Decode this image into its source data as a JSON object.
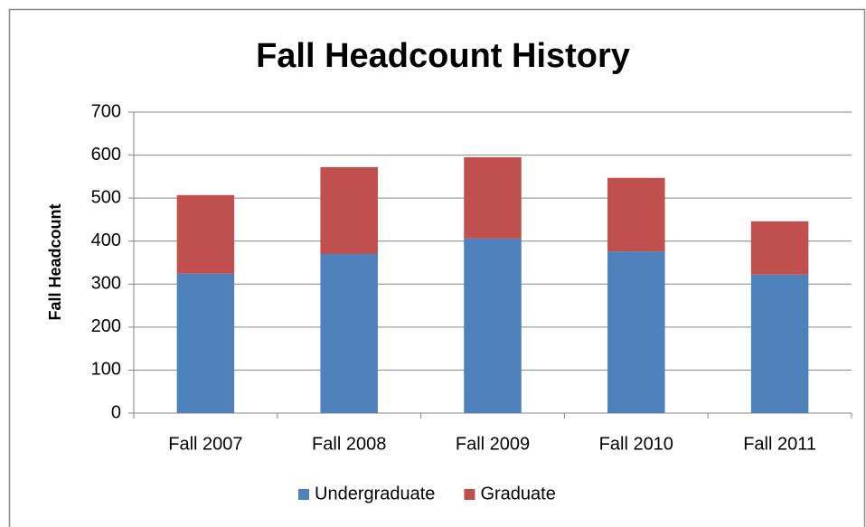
{
  "chart_data": {
    "type": "bar",
    "stacked": true,
    "title": "Fall Headcount History",
    "y_label": "Fall Headcount",
    "categories": [
      "Fall 2007",
      "Fall 2008",
      "Fall 2009",
      "Fall 2010",
      "Fall 2011"
    ],
    "series": [
      {
        "name": "Undergraduate",
        "color": "#4f81bd",
        "values": [
          324,
          370,
          406,
          376,
          322
        ]
      },
      {
        "name": "Graduate",
        "color": "#c0504d",
        "values": [
          183,
          202,
          189,
          171,
          124
        ]
      }
    ],
    "ylim": [
      0,
      700
    ],
    "yticks": [
      0,
      100,
      200,
      300,
      400,
      500,
      600,
      700
    ],
    "grid": true,
    "legend": "bottom"
  }
}
